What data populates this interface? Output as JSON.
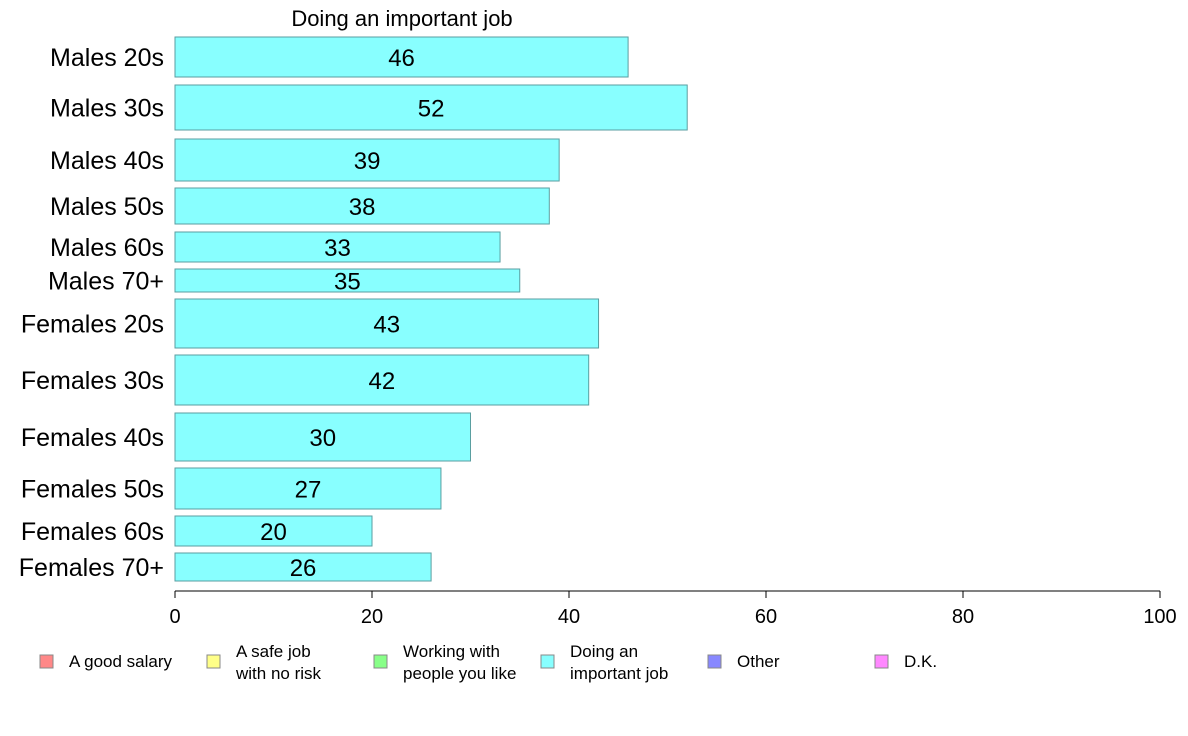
{
  "chart_data": {
    "type": "bar",
    "orientation": "horizontal",
    "title": "Doing an important job",
    "xlabel": "",
    "ylabel": "",
    "xlim": [
      0,
      100
    ],
    "xticks": [
      0,
      20,
      40,
      60,
      80,
      100
    ],
    "grid": false,
    "categories": [
      "Males 20s",
      "Males 30s",
      "Males 40s",
      "Males 50s",
      "Males 60s",
      "Males 70+",
      "Females 20s",
      "Females 30s",
      "Females 40s",
      "Females 50s",
      "Females 60s",
      "Females 70+"
    ],
    "values": [
      46,
      52,
      39,
      38,
      33,
      35,
      43,
      42,
      30,
      27,
      20,
      26
    ],
    "bar_color": "#88ffff",
    "bar_edge_color": "#5a9ea0",
    "legend": {
      "placement": "bottom",
      "items": [
        {
          "lines": [
            "A good salary"
          ],
          "color": "#ff8888"
        },
        {
          "lines": [
            "A safe job",
            "with no risk"
          ],
          "color": "#ffff88"
        },
        {
          "lines": [
            "Working with",
            "people you like"
          ],
          "color": "#88ff88"
        },
        {
          "lines": [
            "Doing an",
            "important job"
          ],
          "color": "#88ffff"
        },
        {
          "lines": [
            "Other"
          ],
          "color": "#8888ff"
        },
        {
          "lines": [
            "D.K."
          ],
          "color": "#ff88ff"
        }
      ]
    }
  }
}
